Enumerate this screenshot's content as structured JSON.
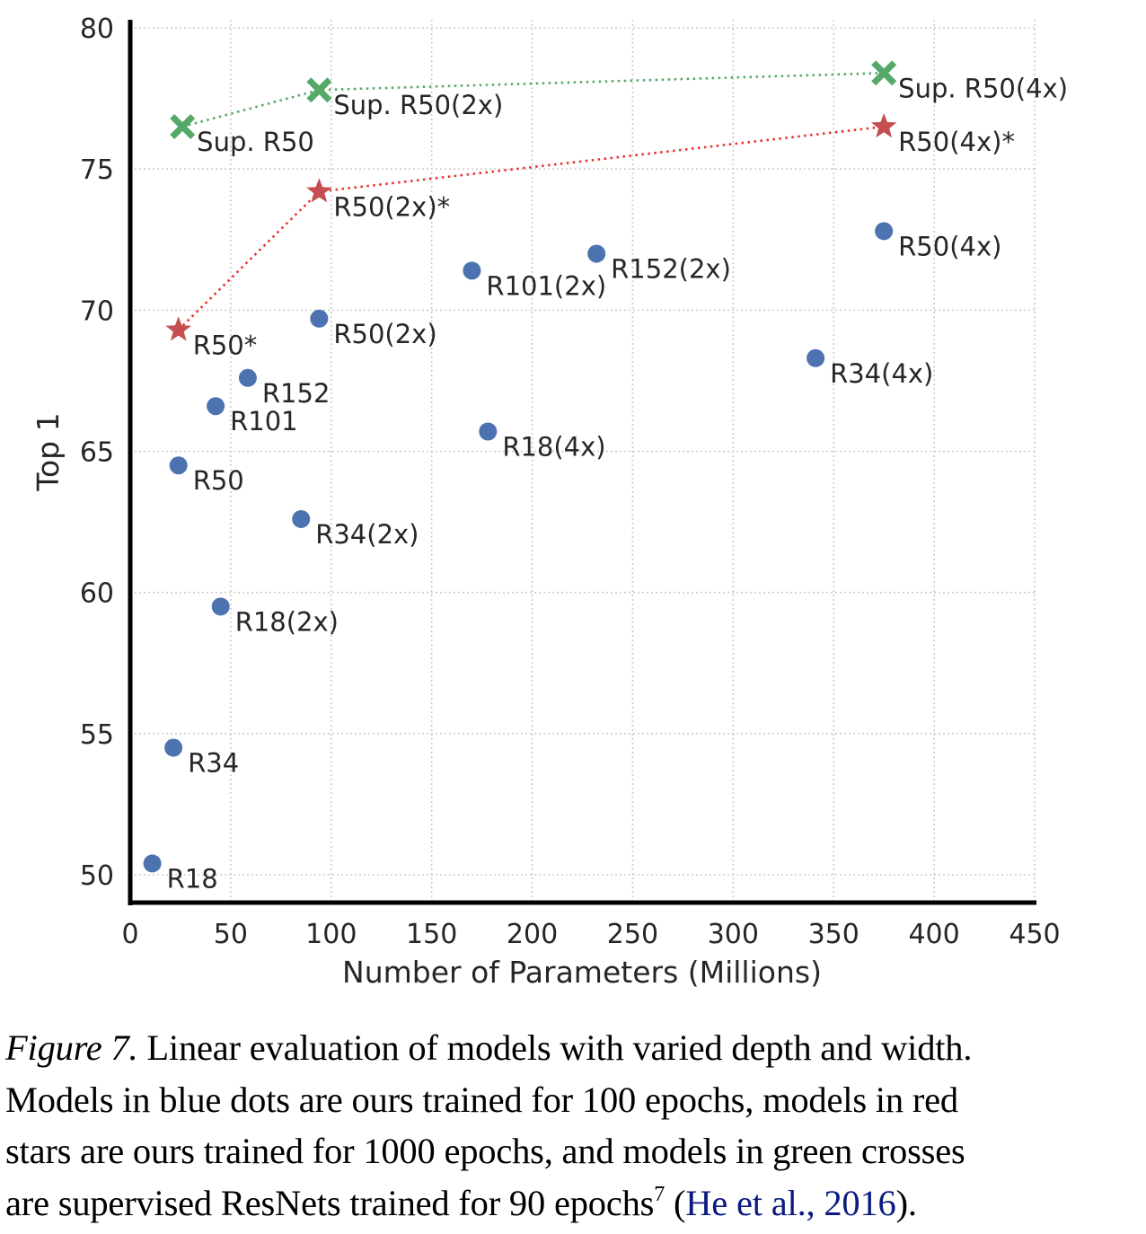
{
  "chart_data": {
    "type": "scatter",
    "title": "",
    "xlabel": "Number of Parameters (Millions)",
    "ylabel": "Top 1",
    "xlim": [
      0,
      450
    ],
    "ylim": [
      49,
      80
    ],
    "xticks": [
      0,
      50,
      100,
      150,
      200,
      250,
      300,
      350,
      400,
      450
    ],
    "yticks": [
      50,
      55,
      60,
      65,
      70,
      75,
      80
    ],
    "grid": true,
    "legend": "none",
    "series": [
      {
        "name": "Ours, 100 epochs",
        "marker": "circle",
        "color": "#4c72b0",
        "connected": false,
        "points": [
          {
            "label": "R18",
            "x": 11,
            "y": 50.4
          },
          {
            "label": "R34",
            "x": 21.5,
            "y": 54.5
          },
          {
            "label": "R50",
            "x": 24,
            "y": 64.5
          },
          {
            "label": "R101",
            "x": 42.5,
            "y": 66.6
          },
          {
            "label": "R152",
            "x": 58.5,
            "y": 67.6
          },
          {
            "label": "R18(2x)",
            "x": 45,
            "y": 59.5
          },
          {
            "label": "R34(2x)",
            "x": 85,
            "y": 62.6
          },
          {
            "label": "R50(2x)",
            "x": 94,
            "y": 69.7
          },
          {
            "label": "R101(2x)",
            "x": 170,
            "y": 71.4
          },
          {
            "label": "R152(2x)",
            "x": 232,
            "y": 72.0
          },
          {
            "label": "R18(4x)",
            "x": 178,
            "y": 65.7
          },
          {
            "label": "R34(4x)",
            "x": 341,
            "y": 68.3
          },
          {
            "label": "R50(4x)",
            "x": 375,
            "y": 72.8
          }
        ]
      },
      {
        "name": "Ours, 1000 epochs",
        "marker": "star",
        "color": "#c44e52",
        "line_color": "#e8302a",
        "connected": true,
        "points": [
          {
            "label": "R50*",
            "x": 24,
            "y": 69.3
          },
          {
            "label": "R50(2x)*",
            "x": 94,
            "y": 74.2
          },
          {
            "label": "R50(4x)*",
            "x": 375,
            "y": 76.5
          }
        ]
      },
      {
        "name": "Supervised ResNets, 90 epochs",
        "marker": "x",
        "color": "#55a868",
        "line_color": "#55a868",
        "connected": true,
        "points": [
          {
            "label": "Sup. R50",
            "x": 26,
            "y": 76.5
          },
          {
            "label": "Sup. R50(2x)",
            "x": 94,
            "y": 77.8
          },
          {
            "label": "Sup. R50(4x)",
            "x": 375,
            "y": 78.4
          }
        ]
      }
    ]
  },
  "caption": {
    "figure_label": "Figure 7.",
    "lines": [
      " Linear evaluation of models with varied depth and width.",
      "Models in blue dots are ours trained for 100 epochs, models in red",
      "stars are ours trained for 1000 epochs, and models in green crosses",
      "are supervised ResNets trained for 90 epochs"
    ],
    "footnote_mark": "7",
    "citation_open": " (",
    "citation_text": "He et al., 2016",
    "citation_close": ")."
  }
}
